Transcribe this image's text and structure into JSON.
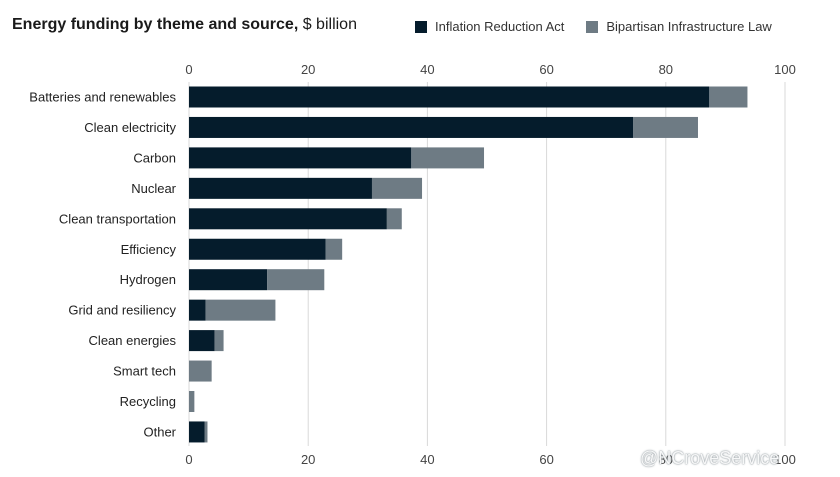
{
  "title": {
    "bold": "Energy funding by theme and source,",
    "light": " $ billion"
  },
  "watermark": "@NCroveService",
  "chart_data": {
    "type": "bar",
    "orientation": "horizontal",
    "stacked": true,
    "xlim": [
      0,
      100
    ],
    "ticks": [
      0,
      20,
      40,
      60,
      80,
      100
    ],
    "grid": true,
    "legend_position": "top-right",
    "categories": [
      "Batteries and renewables",
      "Clean electricity",
      "Carbon",
      "Nuclear",
      "Clean transportation",
      "Efficiency",
      "Hydrogen",
      "Grid and resiliency",
      "Clean energies",
      "Smart tech",
      "Recycling",
      "Other"
    ],
    "series": [
      {
        "name": "Inflation Reduction Act",
        "color": "#051c2c",
        "values": [
          87.3,
          74.5,
          37.3,
          30.7,
          33.2,
          22.9,
          13.1,
          2.8,
          4.3,
          0,
          0,
          2.6
        ]
      },
      {
        "name": "Bipartisan Infrastructure Law",
        "color": "#6e7b84",
        "values": [
          6.4,
          10.9,
          12.2,
          8.4,
          2.5,
          2.8,
          9.6,
          11.7,
          1.5,
          3.8,
          0.9,
          0.5
        ]
      }
    ]
  }
}
